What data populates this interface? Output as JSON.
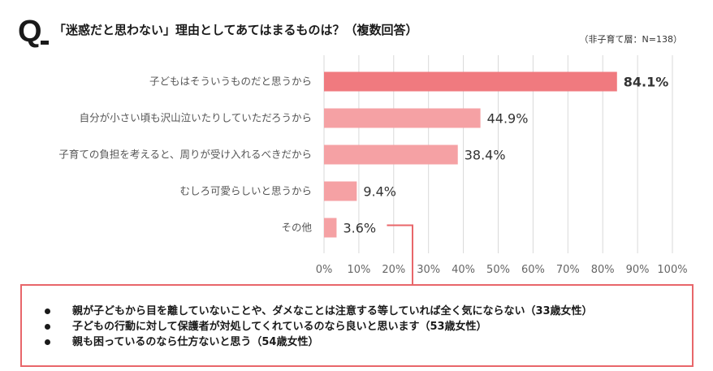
{
  "header": {
    "q_mark": "Q",
    "title": "「迷惑だと思わない」理由としてあてはまるものは？（複数回答）",
    "sample": "（非子育て層：N=138）"
  },
  "chart_data": {
    "type": "bar",
    "orientation": "horizontal",
    "categories": [
      "子どもはそういうものだと思うから",
      "自分が小さい頃も沢山泣いたりしていただろうから",
      "子育ての負担を考えると、周りが受け入れるべきだから",
      "むしろ可愛らしいと思うから",
      "その他"
    ],
    "values": [
      84.1,
      44.9,
      38.4,
      9.4,
      3.6
    ],
    "value_labels": [
      "84.1%",
      "44.9%",
      "38.4%",
      "9.4%",
      "3.6%"
    ],
    "xlim": [
      0,
      100
    ],
    "ticks": [
      "0%",
      "10%",
      "20%",
      "30%",
      "40%",
      "50%",
      "60%",
      "70%",
      "80%",
      "90%",
      "100%"
    ],
    "tick_values": [
      0,
      10,
      20,
      30,
      40,
      50,
      60,
      70,
      80,
      90,
      100
    ],
    "grid": true,
    "colors": {
      "highlight": "#f07a7f",
      "bar": "#f5a1a4",
      "grid": "#d9d9d9"
    },
    "highlight_index": 0,
    "callout_index": 4
  },
  "comments": {
    "border_color": "#e8666a",
    "items": [
      "親が子どもから目を離していないことや、ダメなことは注意する等していれば全く気にならない（33歳女性）",
      "子どもの行動に対して保護者が対処してくれているのなら良いと思います（53歳女性）",
      "親も困っているのなら仕方ないと思う（54歳女性）"
    ]
  }
}
